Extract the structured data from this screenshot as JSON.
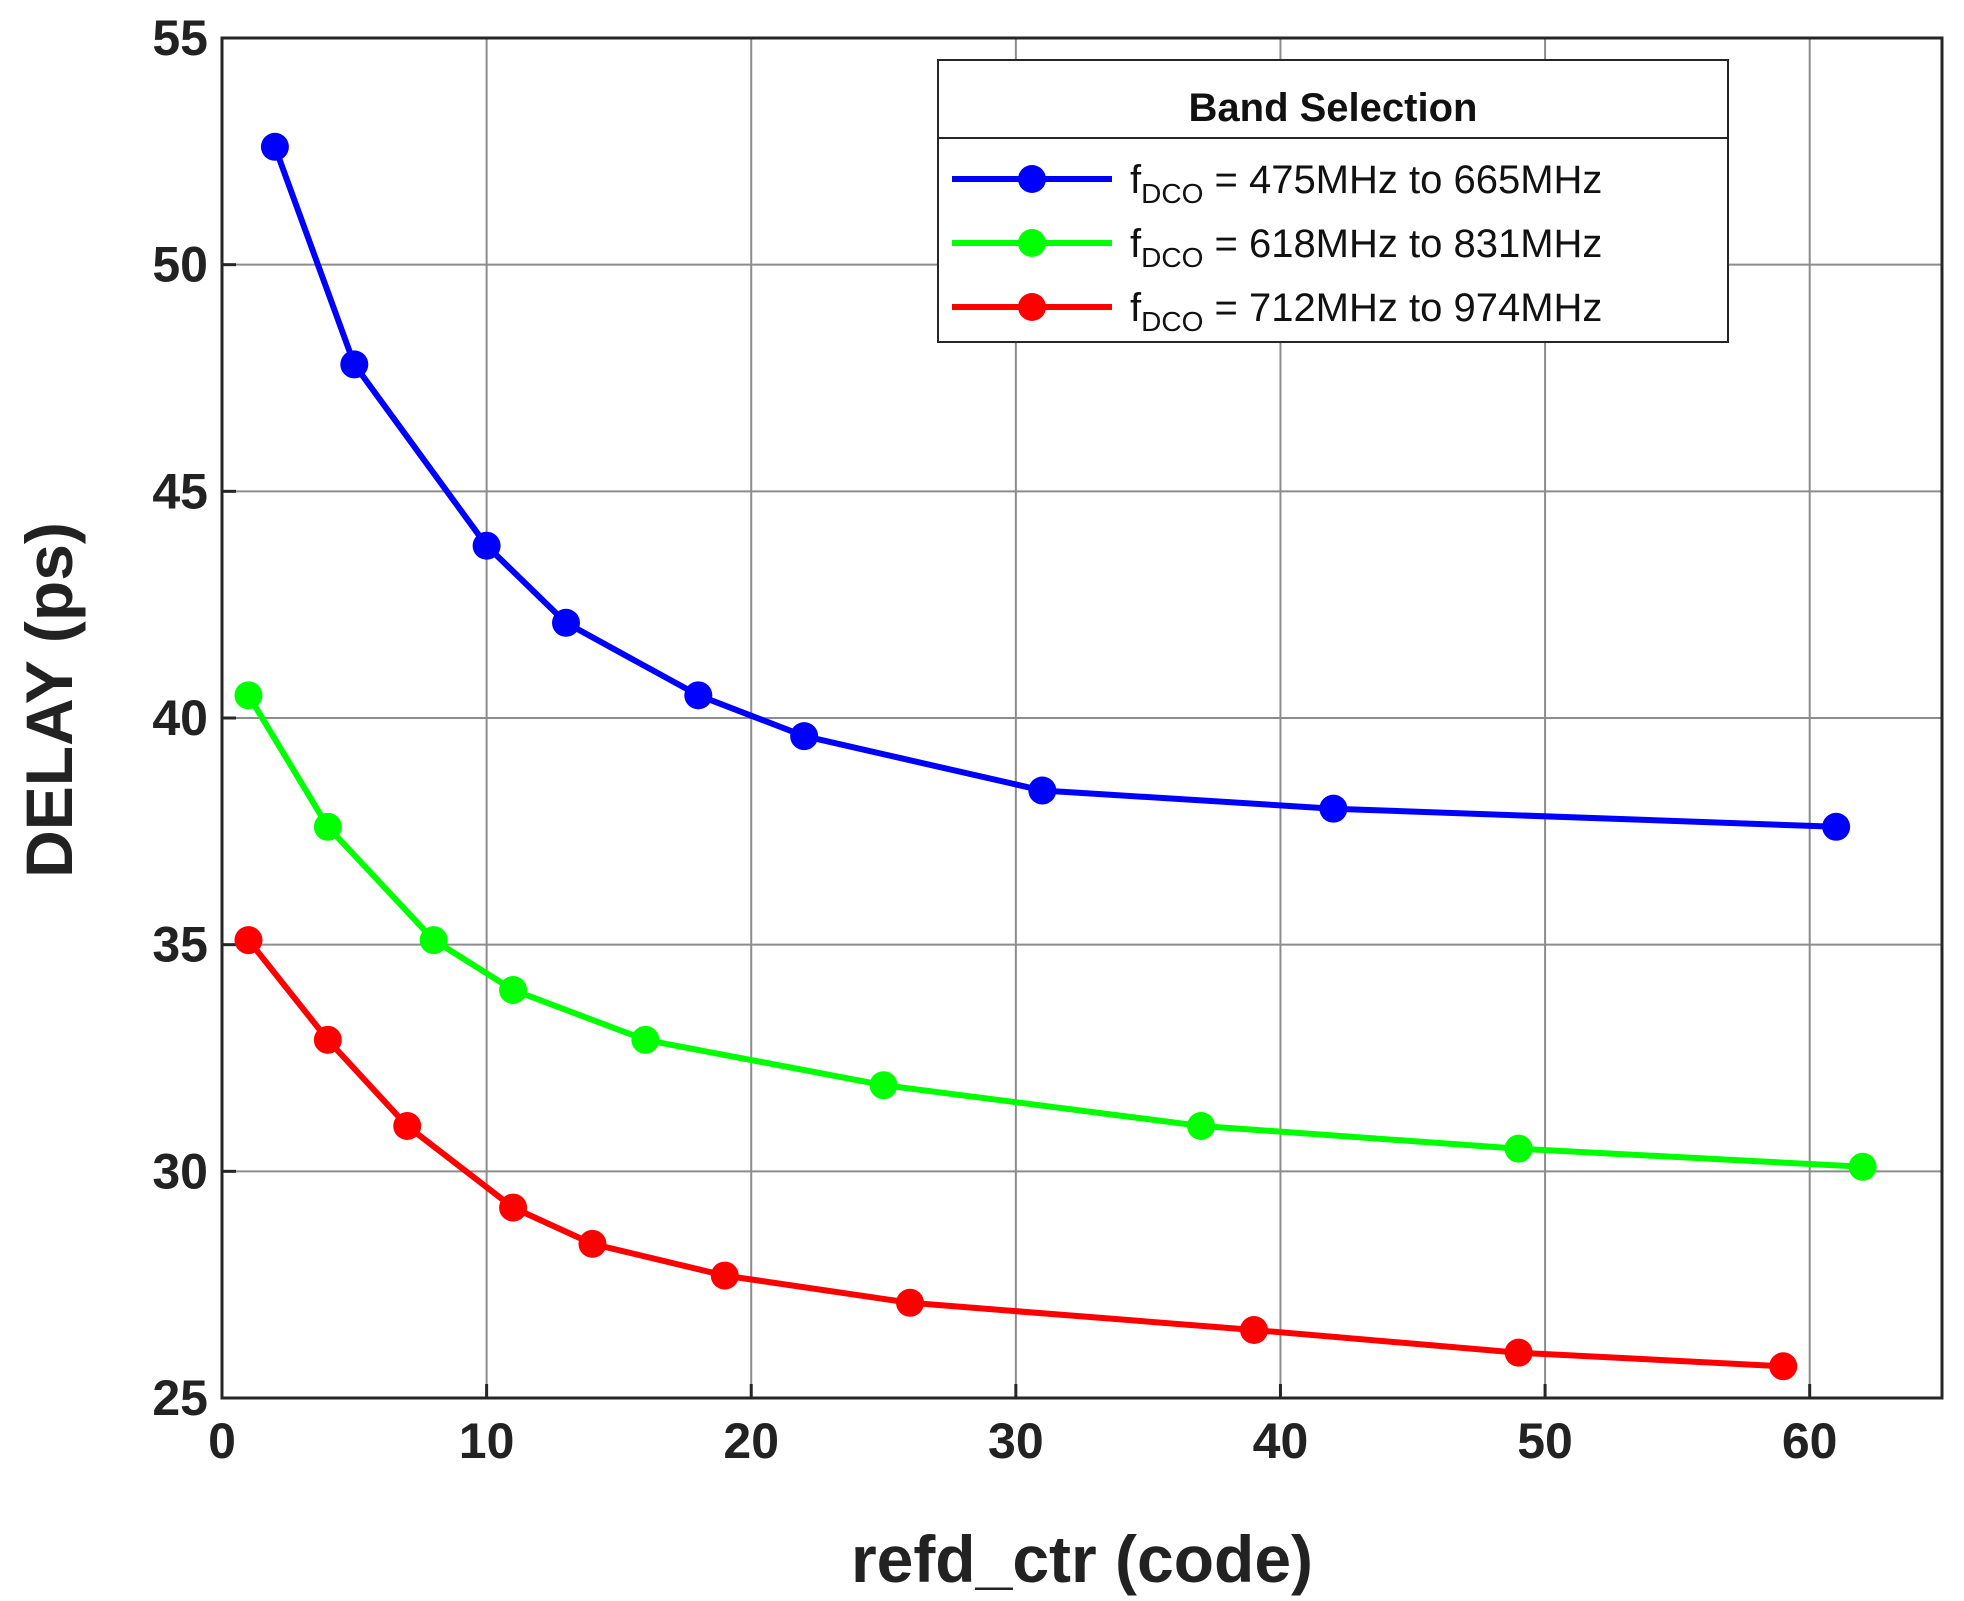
{
  "chart_data": {
    "type": "line",
    "title": "",
    "xlabel": "refd_ctr (code)",
    "ylabel": "DELAY (ps)",
    "xlim": [
      0,
      65
    ],
    "ylim": [
      25,
      55
    ],
    "xticks": [
      0,
      10,
      20,
      30,
      40,
      50,
      60
    ],
    "yticks": [
      25,
      30,
      35,
      40,
      45,
      50,
      55
    ],
    "xtick_labels": [
      "0",
      "10",
      "20",
      "30",
      "40",
      "50",
      "60"
    ],
    "ytick_labels": [
      "25",
      "30",
      "35",
      "40",
      "45",
      "50",
      "55"
    ],
    "grid": true,
    "legend": {
      "title": "Band Selection",
      "placement": "top-right"
    },
    "series": [
      {
        "name_main": "f",
        "name_sub": "DCO",
        "name_rest": " = 475MHz to 665MHz",
        "color": "#0000ff",
        "x": [
          2,
          5,
          10,
          13,
          18,
          22,
          31,
          42,
          61
        ],
        "y": [
          52.6,
          47.8,
          43.8,
          42.1,
          40.5,
          39.6,
          38.4,
          38.0,
          37.6
        ]
      },
      {
        "name_main": "f",
        "name_sub": "DCO",
        "name_rest": " = 618MHz to 831MHz",
        "color": "#00ff00",
        "x": [
          1,
          4,
          8,
          11,
          16,
          25,
          37,
          49,
          62
        ],
        "y": [
          40.5,
          37.6,
          35.1,
          34.0,
          32.9,
          31.9,
          31.0,
          30.5,
          30.1
        ]
      },
      {
        "name_main": "f",
        "name_sub": "DCO",
        "name_rest": " = 712MHz to 974MHz",
        "color": "#ff0000",
        "x": [
          1,
          4,
          7,
          11,
          14,
          19,
          26,
          39,
          49,
          59
        ],
        "y": [
          35.1,
          32.9,
          31.0,
          29.2,
          28.4,
          27.7,
          27.1,
          26.5,
          26.0,
          25.7
        ]
      }
    ]
  }
}
